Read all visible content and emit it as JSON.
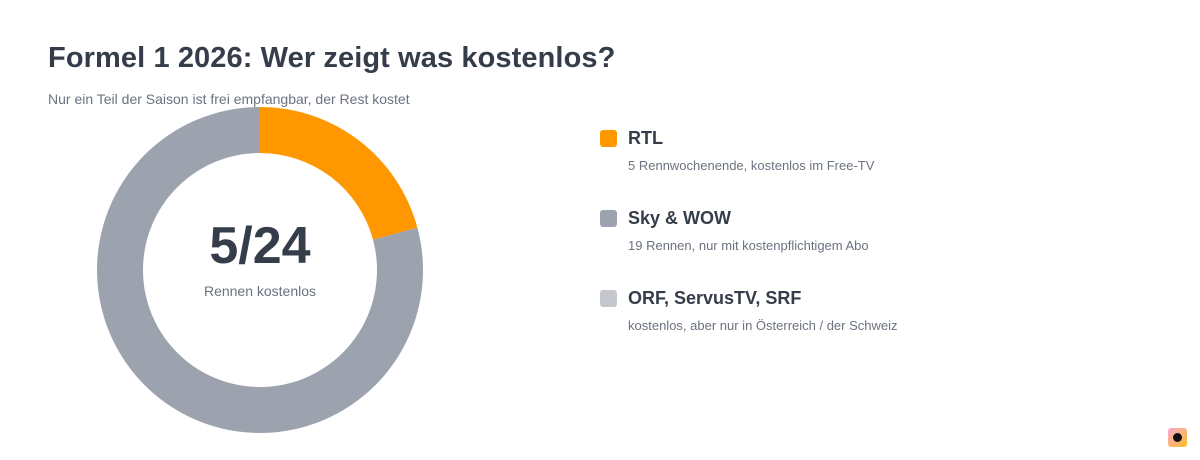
{
  "header": {
    "title": "Formel 1 2026: Wer zeigt was kostenlos?",
    "subtitle": "Nur ein Teil der Saison ist frei empfangbar, der Rest kostet"
  },
  "chart_data": {
    "type": "pie",
    "title": "Formel 1 2026: Wer zeigt was kostenlos?",
    "subtitle": "Nur ein Teil der Saison ist frei empfangbar, der Rest kostet",
    "total": 24,
    "slices": [
      {
        "label": "RTL",
        "value": 5,
        "color": "#ff9800"
      },
      {
        "label": "Sky & WOW",
        "value": 19,
        "color": "#9ca3af"
      }
    ],
    "center_value": "5/24",
    "center_label": "Rennen kostenlos",
    "legend_placement": "right"
  },
  "legend": {
    "items": [
      {
        "name": "RTL",
        "desc": "5 Rennwochenende, kostenlos im Free-TV",
        "color": "#ff9800"
      },
      {
        "name": "Sky & WOW",
        "desc": "19 Rennen, nur mit kostenpflichtigem Abo",
        "color": "#9ca3af"
      },
      {
        "name": "ORF, ServusTV, SRF",
        "desc": "kostenlos, aber nur in Österreich / der Schweiz",
        "color": "#c4c7cc"
      }
    ]
  },
  "brand": {
    "icon": "brand-logo-icon"
  }
}
